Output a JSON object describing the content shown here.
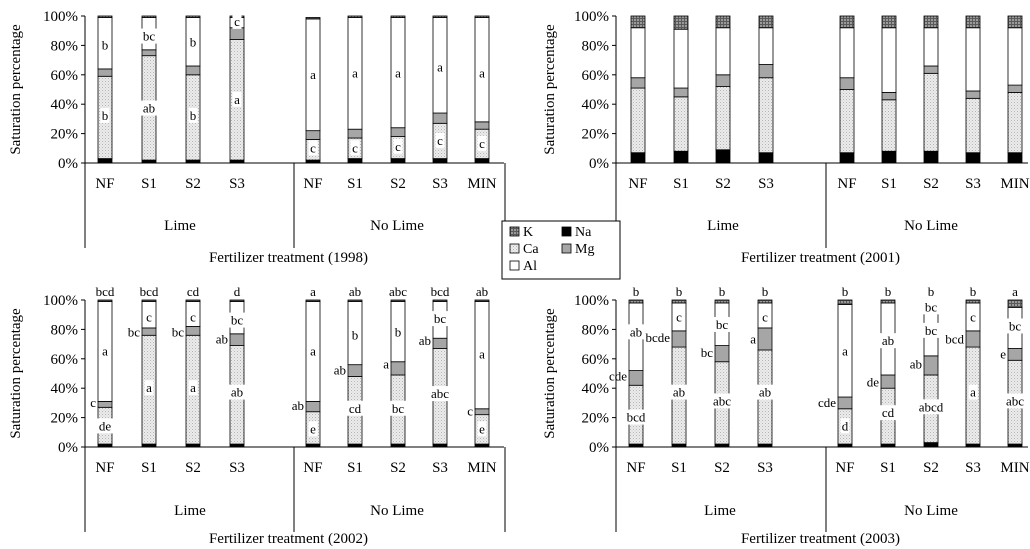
{
  "legend": {
    "items": [
      {
        "label": "K",
        "color": "#808080",
        "pattern": "grid"
      },
      {
        "label": "Na",
        "color": "#000000",
        "pattern": "solid"
      },
      {
        "label": "Ca",
        "color": "#ececec",
        "pattern": "dots"
      },
      {
        "label": "Mg",
        "color": "#a6a6a6",
        "pattern": "solid"
      },
      {
        "label": "Al",
        "color": "#ffffff",
        "pattern": "solid"
      }
    ]
  },
  "chart_data": [
    {
      "type": "bar",
      "stacked": true,
      "title": "",
      "xlabel": "Fertilizer treatment (1998)",
      "ylabel": "Saturation percentage",
      "ylim": [
        0,
        100
      ],
      "yticks": [
        "0%",
        "20%",
        "40%",
        "60%",
        "80%",
        "100%"
      ],
      "groups": [
        {
          "name": "Lime",
          "categories": [
            "NF",
            "S1",
            "S2",
            "S3"
          ]
        },
        {
          "name": "No Lime",
          "categories": [
            "NF",
            "S1",
            "S2",
            "S3",
            "MIN"
          ]
        }
      ],
      "series": [
        {
          "name": "Na",
          "values": [
            3,
            2,
            2,
            2,
            2,
            3,
            3,
            3,
            3
          ]
        },
        {
          "name": "Ca",
          "values": [
            56,
            71,
            58,
            82,
            14,
            14,
            15,
            24,
            20
          ]
        },
        {
          "name": "Mg",
          "values": [
            5,
            4,
            6,
            8,
            6,
            6,
            6,
            7,
            5
          ]
        },
        {
          "name": "Al",
          "values": [
            35,
            22,
            33,
            7,
            76,
            76,
            75,
            65,
            71
          ]
        },
        {
          "name": "K",
          "values": [
            1,
            1,
            1,
            1,
            1,
            1,
            1,
            1,
            1
          ]
        }
      ],
      "annotations": [
        {
          "bar": 0,
          "labels": [
            {
              "text": "b",
              "y": 32
            },
            {
              "text": "b",
              "y": 80
            }
          ]
        },
        {
          "bar": 1,
          "labels": [
            {
              "text": "ab",
              "y": 37
            },
            {
              "text": "bc",
              "y": 86
            }
          ]
        },
        {
          "bar": 2,
          "labels": [
            {
              "text": "b",
              "y": 32
            },
            {
              "text": "b",
              "y": 82
            }
          ]
        },
        {
          "bar": 3,
          "labels": [
            {
              "text": "a",
              "y": 43
            },
            {
              "text": "c",
              "y": 96
            }
          ]
        },
        {
          "bar": 4,
          "labels": [
            {
              "text": "c",
              "y": 10
            },
            {
              "text": "a",
              "y": 60
            }
          ]
        },
        {
          "bar": 5,
          "labels": [
            {
              "text": "c",
              "y": 10
            },
            {
              "text": "a",
              "y": 61
            }
          ]
        },
        {
          "bar": 6,
          "labels": [
            {
              "text": "c",
              "y": 11
            },
            {
              "text": "a",
              "y": 61
            }
          ]
        },
        {
          "bar": 7,
          "labels": [
            {
              "text": "c",
              "y": 15
            },
            {
              "text": "a",
              "y": 65
            }
          ]
        },
        {
          "bar": 8,
          "labels": [
            {
              "text": "c",
              "y": 13
            },
            {
              "text": "a",
              "y": 61
            }
          ]
        }
      ]
    },
    {
      "type": "bar",
      "stacked": true,
      "title": "",
      "xlabel": "Fertilizer treatment (2001)",
      "ylabel": "Saturation percentage",
      "ylim": [
        0,
        100
      ],
      "yticks": [
        "0%",
        "20%",
        "40%",
        "60%",
        "80%",
        "100%"
      ],
      "groups": [
        {
          "name": "Lime",
          "categories": [
            "NF",
            "S1",
            "S2",
            "S3"
          ]
        },
        {
          "name": "No Lime",
          "categories": [
            "NF",
            "S1",
            "S2",
            "S3",
            "MIN"
          ]
        }
      ],
      "series": [
        {
          "name": "Na",
          "values": [
            7,
            8,
            9,
            7,
            7,
            8,
            8,
            7,
            7
          ]
        },
        {
          "name": "Ca",
          "values": [
            44,
            37,
            43,
            51,
            43,
            35,
            53,
            37,
            41
          ]
        },
        {
          "name": "Mg",
          "values": [
            7,
            6,
            8,
            9,
            8,
            5,
            5,
            5,
            5
          ]
        },
        {
          "name": "Al",
          "values": [
            34,
            40,
            32,
            25,
            34,
            44,
            26,
            43,
            39
          ]
        },
        {
          "name": "K",
          "values": [
            8,
            9,
            8,
            8,
            8,
            8,
            8,
            8,
            8
          ]
        }
      ],
      "annotations": []
    },
    {
      "type": "bar",
      "stacked": true,
      "title": "",
      "xlabel": "Fertilizer treatment (2002)",
      "ylabel": "Saturation percentage",
      "ylim": [
        0,
        100
      ],
      "yticks": [
        "0%",
        "20%",
        "40%",
        "60%",
        "80%",
        "100%"
      ],
      "groups": [
        {
          "name": "Lime",
          "categories": [
            "NF",
            "S1",
            "S2",
            "S3"
          ]
        },
        {
          "name": "No Lime",
          "categories": [
            "NF",
            "S1",
            "S2",
            "S3",
            "MIN"
          ]
        }
      ],
      "series": [
        {
          "name": "Na",
          "values": [
            2,
            2,
            2,
            2,
            2,
            2,
            2,
            2,
            2
          ]
        },
        {
          "name": "Ca",
          "values": [
            25,
            74,
            74,
            67,
            22,
            46,
            47,
            65,
            20
          ]
        },
        {
          "name": "Mg",
          "values": [
            4,
            5,
            6,
            8,
            7,
            8,
            9,
            7,
            4
          ]
        },
        {
          "name": "Al",
          "values": [
            68,
            18,
            17,
            22,
            68,
            43,
            41,
            25,
            73
          ]
        },
        {
          "name": "K",
          "values": [
            1,
            1,
            1,
            1,
            1,
            1,
            1,
            1,
            1
          ]
        }
      ],
      "annotations": [
        {
          "bar": 0,
          "labels": [
            {
              "text": "c",
              "y": 30,
              "side": "left"
            },
            {
              "text": "de",
              "y": 14
            },
            {
              "text": "a",
              "y": 65
            },
            {
              "text": "bcd",
              "y": 106,
              "side": "top"
            }
          ]
        },
        {
          "bar": 1,
          "labels": [
            {
              "text": "bc",
              "y": 78,
              "side": "left"
            },
            {
              "text": "a",
              "y": 40
            },
            {
              "text": "c",
              "y": 88
            },
            {
              "text": "bcd",
              "y": 106,
              "side": "top"
            }
          ]
        },
        {
          "bar": 2,
          "labels": [
            {
              "text": "bc",
              "y": 78,
              "side": "left"
            },
            {
              "text": "a",
              "y": 40
            },
            {
              "text": "c",
              "y": 88
            },
            {
              "text": "cd",
              "y": 106,
              "side": "top"
            }
          ]
        },
        {
          "bar": 3,
          "labels": [
            {
              "text": "ab",
              "y": 73,
              "side": "left"
            },
            {
              "text": "ab",
              "y": 37
            },
            {
              "text": "bc",
              "y": 86
            },
            {
              "text": "d",
              "y": 106,
              "side": "top"
            }
          ]
        },
        {
          "bar": 4,
          "labels": [
            {
              "text": "ab",
              "y": 28,
              "side": "left"
            },
            {
              "text": "e",
              "y": 12
            },
            {
              "text": "a",
              "y": 65
            },
            {
              "text": "a",
              "y": 106,
              "side": "top"
            }
          ]
        },
        {
          "bar": 5,
          "labels": [
            {
              "text": "ab",
              "y": 52,
              "side": "left"
            },
            {
              "text": "cd",
              "y": 26
            },
            {
              "text": "b",
              "y": 76
            },
            {
              "text": "ab",
              "y": 106,
              "side": "top"
            }
          ]
        },
        {
          "bar": 6,
          "labels": [
            {
              "text": "a",
              "y": 56,
              "side": "left"
            },
            {
              "text": "bc",
              "y": 26
            },
            {
              "text": "b",
              "y": 78
            },
            {
              "text": "abc",
              "y": 106,
              "side": "top"
            }
          ]
        },
        {
          "bar": 7,
          "labels": [
            {
              "text": "ab",
              "y": 72,
              "side": "left"
            },
            {
              "text": "abc",
              "y": 36
            },
            {
              "text": "bc",
              "y": 87
            },
            {
              "text": "bcd",
              "y": 106,
              "side": "top"
            }
          ]
        },
        {
          "bar": 8,
          "labels": [
            {
              "text": "c",
              "y": 24,
              "side": "left"
            },
            {
              "text": "e",
              "y": 12
            },
            {
              "text": "a",
              "y": 63
            },
            {
              "text": "ab",
              "y": 106,
              "side": "top"
            }
          ]
        }
      ]
    },
    {
      "type": "bar",
      "stacked": true,
      "title": "",
      "xlabel": "Fertilizer treatment (2003)",
      "ylabel": "Saturation percentage",
      "ylim": [
        0,
        100
      ],
      "yticks": [
        "0%",
        "20%",
        "40%",
        "60%",
        "80%",
        "100%"
      ],
      "groups": [
        {
          "name": "Lime",
          "categories": [
            "NF",
            "S1",
            "S2",
            "S3"
          ]
        },
        {
          "name": "No Lime",
          "categories": [
            "NF",
            "S1",
            "S2",
            "S3",
            "MIN"
          ]
        }
      ],
      "series": [
        {
          "name": "Na",
          "values": [
            2,
            2,
            2,
            2,
            2,
            2,
            3,
            2,
            2
          ]
        },
        {
          "name": "Ca",
          "values": [
            40,
            66,
            56,
            64,
            24,
            38,
            46,
            66,
            57
          ]
        },
        {
          "name": "Mg",
          "values": [
            10,
            11,
            11,
            15,
            8,
            9,
            13,
            11,
            8
          ]
        },
        {
          "name": "Al",
          "values": [
            46,
            19,
            29,
            17,
            63,
            49,
            32,
            19,
            28
          ]
        },
        {
          "name": "K",
          "values": [
            2,
            2,
            2,
            2,
            3,
            2,
            6,
            2,
            5
          ]
        }
      ],
      "annotations": [
        {
          "bar": 0,
          "labels": [
            {
              "text": "cde",
              "y": 48,
              "side": "left"
            },
            {
              "text": "bcd",
              "y": 20
            },
            {
              "text": "ab",
              "y": 78
            },
            {
              "text": "b",
              "y": 106,
              "side": "top"
            }
          ]
        },
        {
          "bar": 1,
          "labels": [
            {
              "text": "bcde",
              "y": 74,
              "side": "left"
            },
            {
              "text": "ab",
              "y": 37
            },
            {
              "text": "c",
              "y": 88
            },
            {
              "text": "b",
              "y": 106,
              "side": "top"
            }
          ]
        },
        {
          "bar": 2,
          "labels": [
            {
              "text": "bc",
              "y": 64,
              "side": "left"
            },
            {
              "text": "abc",
              "y": 31
            },
            {
              "text": "bc",
              "y": 83
            },
            {
              "text": "b",
              "y": 106,
              "side": "top"
            }
          ]
        },
        {
          "bar": 3,
          "labels": [
            {
              "text": "a",
              "y": 73,
              "side": "left"
            },
            {
              "text": "ab",
              "y": 37
            },
            {
              "text": "c",
              "y": 88
            },
            {
              "text": "b",
              "y": 106,
              "side": "top"
            }
          ]
        },
        {
          "bar": 4,
          "labels": [
            {
              "text": "cde",
              "y": 30,
              "side": "left"
            },
            {
              "text": "d",
              "y": 14
            },
            {
              "text": "a",
              "y": 65
            },
            {
              "text": "b",
              "y": 106,
              "side": "top"
            }
          ]
        },
        {
          "bar": 5,
          "labels": [
            {
              "text": "de",
              "y": 44,
              "side": "left"
            },
            {
              "text": "cd",
              "y": 23
            },
            {
              "text": "ab",
              "y": 72
            },
            {
              "text": "b",
              "y": 106,
              "side": "top"
            }
          ]
        },
        {
          "bar": 6,
          "labels": [
            {
              "text": "ab",
              "y": 56,
              "side": "left"
            },
            {
              "text": "abcd",
              "y": 27
            },
            {
              "text": "bc",
              "y": 79
            },
            {
              "text": "bc",
              "y": 95
            },
            {
              "text": "b",
              "y": 106,
              "side": "top"
            }
          ]
        },
        {
          "bar": 7,
          "labels": [
            {
              "text": "bcd",
              "y": 73,
              "side": "left"
            },
            {
              "text": "a",
              "y": 37
            },
            {
              "text": "c",
              "y": 88
            },
            {
              "text": "b",
              "y": 106,
              "side": "top"
            }
          ]
        },
        {
          "bar": 8,
          "labels": [
            {
              "text": "e",
              "y": 63,
              "side": "left"
            },
            {
              "text": "abc",
              "y": 31
            },
            {
              "text": "bc",
              "y": 82
            },
            {
              "text": "a",
              "y": 106,
              "side": "top"
            }
          ]
        }
      ]
    }
  ]
}
